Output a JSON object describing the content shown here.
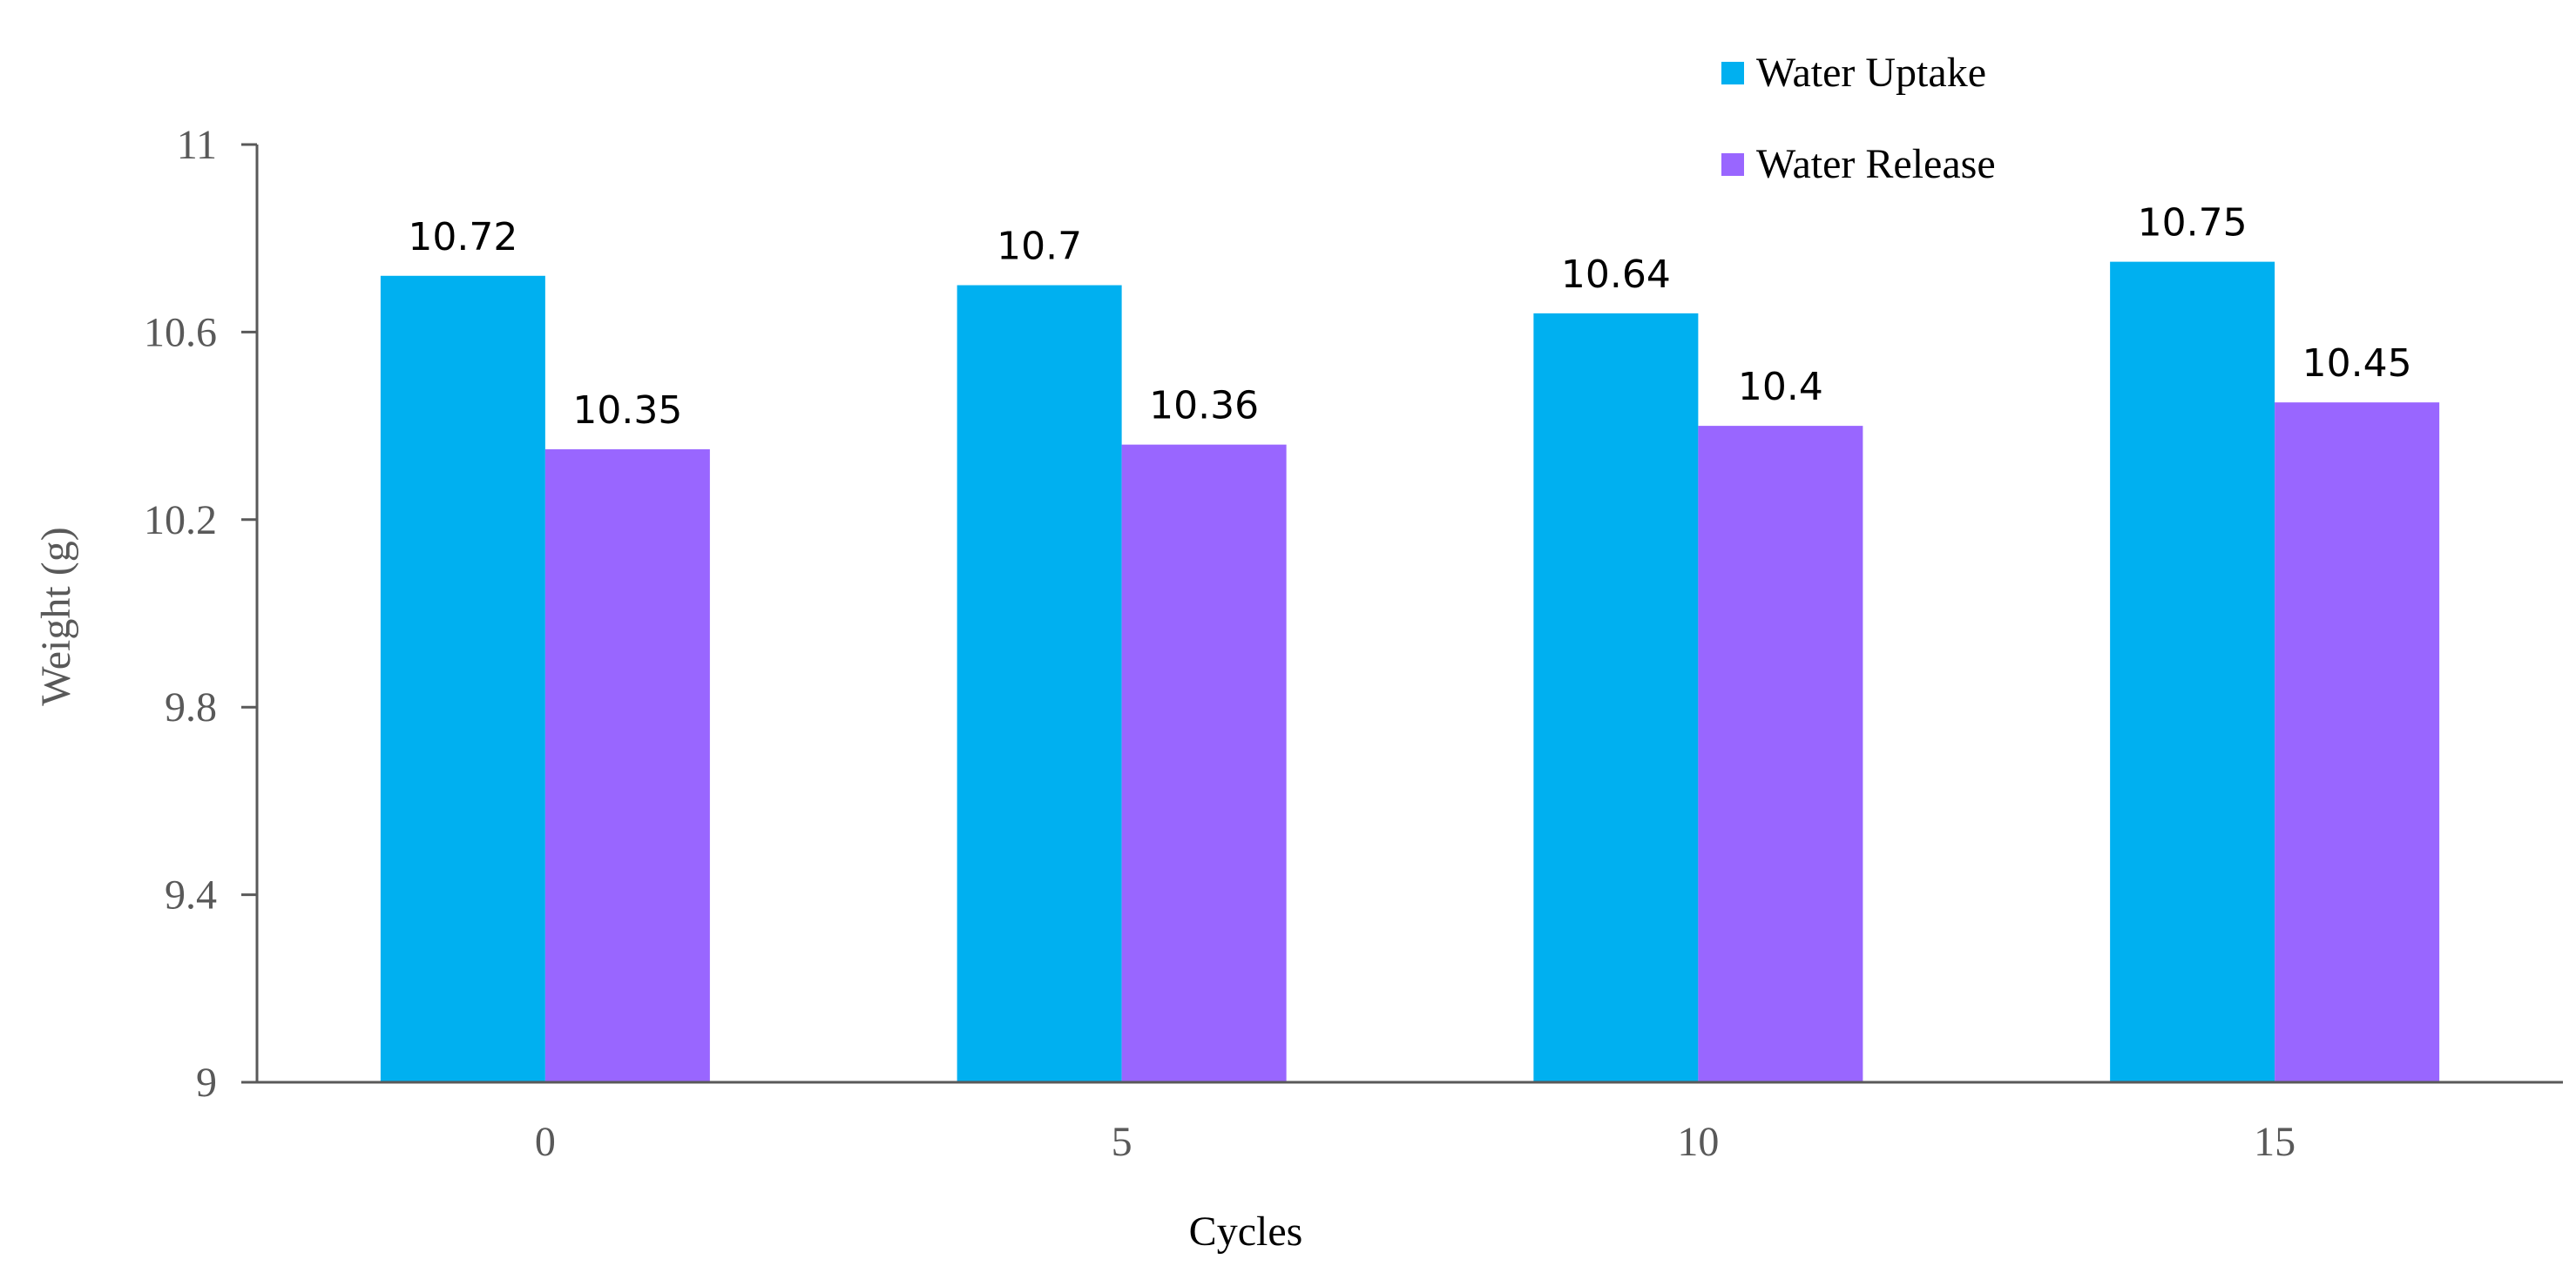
{
  "chart_data": {
    "type": "bar",
    "title": "",
    "xlabel": "Cycles",
    "ylabel": "Weight (g)",
    "ylim": [
      9,
      11
    ],
    "yticks": [
      "9",
      "9.4",
      "9.8",
      "10.2",
      "10.6",
      "11"
    ],
    "categories": [
      "0",
      "5",
      "10",
      "15"
    ],
    "series": [
      {
        "name": "Water Uptake",
        "color": "#00B0F0",
        "values": [
          10.72,
          10.7,
          10.64,
          10.75
        ],
        "labels": [
          "10.72",
          "10.7",
          "10.64",
          "10.75"
        ]
      },
      {
        "name": "Water Release",
        "color": "#9966FF",
        "values": [
          10.35,
          10.36,
          10.4,
          10.45
        ],
        "labels": [
          "10.35",
          "10.36",
          "10.4",
          "10.45"
        ]
      }
    ],
    "legend_position": "top-right",
    "grid": false
  }
}
